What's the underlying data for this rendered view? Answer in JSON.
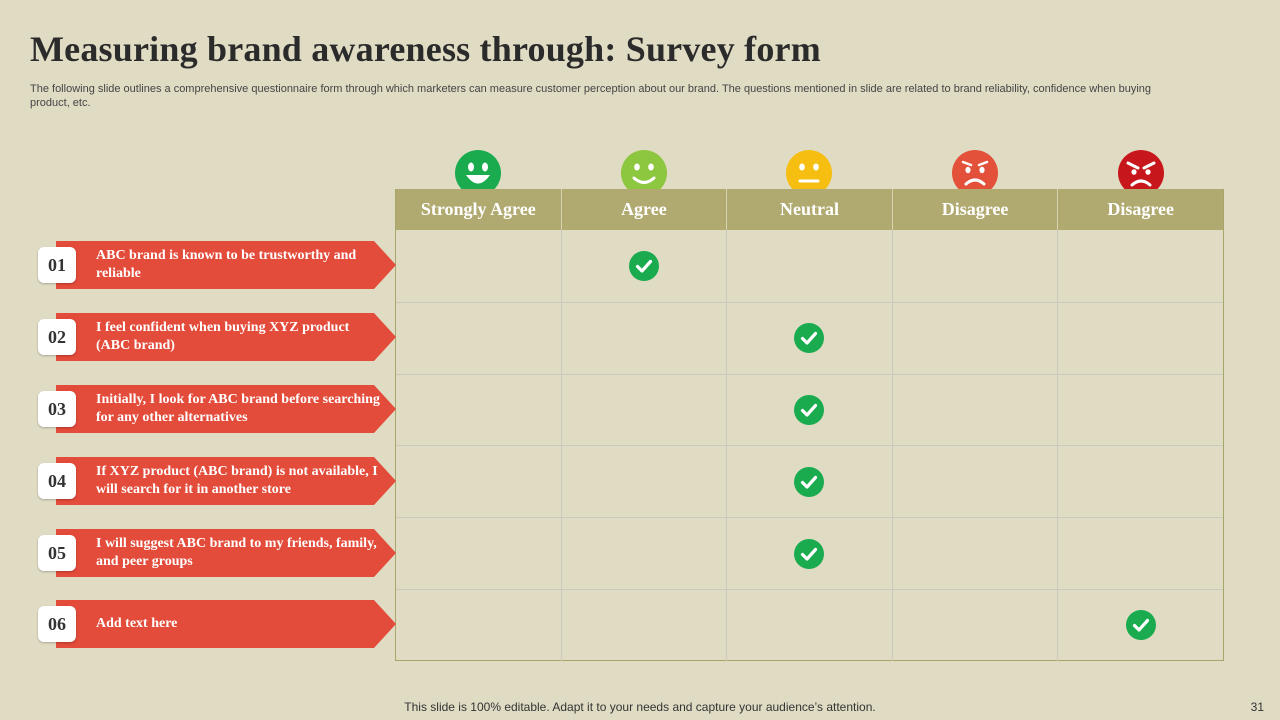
{
  "title": "Measuring brand awareness through: Survey form",
  "subtitle": "The following slide outlines a comprehensive questionnaire form through which marketers can measure customer perception about our brand. The questions mentioned in slide are related to brand reliability, confidence when buying product, etc.",
  "columns": [
    {
      "label": "Strongly Agree",
      "face": "grin-face-icon",
      "color": "#1aab4f"
    },
    {
      "label": "Agree",
      "face": "smile-face-icon",
      "color": "#8dc63f"
    },
    {
      "label": "Neutral",
      "face": "neutral-face-icon",
      "color": "#f5be10"
    },
    {
      "label": "Disagree",
      "face": "frown-face-icon",
      "color": "#e3513a"
    },
    {
      "label": "Disagree",
      "face": "angry-face-icon",
      "color": "#c8161d"
    }
  ],
  "rows": [
    {
      "num": "01",
      "text": "ABC brand is known to be trustworthy and reliable",
      "checked_column": 1
    },
    {
      "num": "02",
      "text": "I feel confident when buying XYZ product (ABC brand)",
      "checked_column": 2
    },
    {
      "num": "03",
      "text": "Initially, I look for ABC brand before searching for any other alternatives",
      "checked_column": 2
    },
    {
      "num": "04",
      "text": "If XYZ product (ABC brand) is not available, I will search for it in another store",
      "checked_column": 2
    },
    {
      "num": "05",
      "text": "I will suggest ABC brand to my friends, family, and peer groups",
      "checked_column": 2
    },
    {
      "num": "06",
      "text": "Add text here",
      "checked_column": 4
    }
  ],
  "colors": {
    "ribbon": "#e34b3a",
    "header": "#b0aa70",
    "check": "#1aab4f",
    "background": "#e0dcc4"
  },
  "footer": "This slide is 100% editable. Adapt it to your needs and capture your audience’s attention.",
  "page_number": "31"
}
